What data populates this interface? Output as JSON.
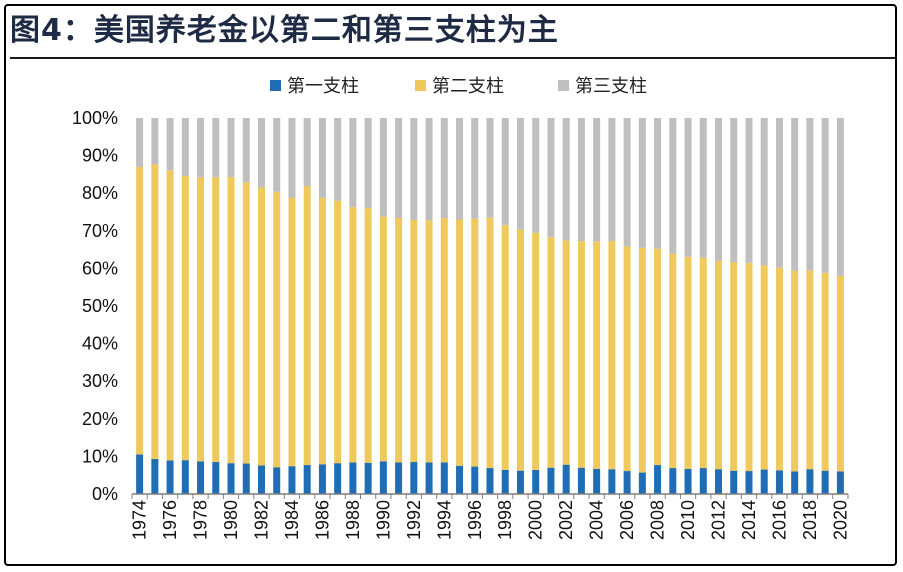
{
  "title": "图4：美国养老金以第二和第三支柱为主",
  "chart_data": {
    "type": "bar",
    "stacked": true,
    "categories": [
      "1974",
      "1975",
      "1976",
      "1977",
      "1978",
      "1979",
      "1980",
      "1981",
      "1982",
      "1983",
      "1984",
      "1985",
      "1986",
      "1987",
      "1988",
      "1989",
      "1990",
      "1991",
      "1992",
      "1993",
      "1994",
      "1995",
      "1996",
      "1997",
      "1998",
      "1999",
      "2000",
      "2001",
      "2002",
      "2003",
      "2004",
      "2005",
      "2006",
      "2007",
      "2008",
      "2009",
      "2010",
      "2011",
      "2012",
      "2013",
      "2014",
      "2015",
      "2016",
      "2017",
      "2018",
      "2019",
      "2020"
    ],
    "x_tick_labels": [
      "1974",
      "1976",
      "1978",
      "1980",
      "1982",
      "1984",
      "1986",
      "1988",
      "1990",
      "1992",
      "1994",
      "1996",
      "1998",
      "2000",
      "2002",
      "2004",
      "2006",
      "2008",
      "2010",
      "2012",
      "2014",
      "2016",
      "2018",
      "2020"
    ],
    "y_tick_labels": [
      "0%",
      "10%",
      "20%",
      "30%",
      "40%",
      "50%",
      "60%",
      "70%",
      "80%",
      "90%",
      "100%"
    ],
    "ylim": [
      0,
      100
    ],
    "legend_position": "top",
    "series": [
      {
        "name": "第一支柱",
        "color": "#1f6db5",
        "values": [
          10.5,
          9.3,
          8.9,
          9.0,
          8.7,
          8.5,
          8.2,
          8.1,
          7.6,
          7.1,
          7.4,
          7.7,
          7.9,
          8.2,
          8.4,
          8.3,
          8.7,
          8.4,
          8.5,
          8.4,
          8.4,
          7.5,
          7.3,
          6.9,
          6.4,
          6.2,
          6.4,
          7.0,
          7.8,
          7.0,
          6.7,
          6.6,
          6.1,
          5.7,
          7.7,
          6.9,
          6.7,
          6.9,
          6.6,
          6.2,
          6.1,
          6.5,
          6.3,
          6.0,
          6.6,
          6.2,
          6.0
        ]
      },
      {
        "name": "第二支柱",
        "color": "#f0c95c",
        "values": [
          76.5,
          78.4,
          77.2,
          75.6,
          75.5,
          75.7,
          76.1,
          74.8,
          73.9,
          73.3,
          71.4,
          74.2,
          70.9,
          69.8,
          67.9,
          67.7,
          65.1,
          65.0,
          64.4,
          64.4,
          65.0,
          65.5,
          65.9,
          66.6,
          65.1,
          64.1,
          63.1,
          61.3,
          59.6,
          60.2,
          60.5,
          60.7,
          59.8,
          59.8,
          57.5,
          57.0,
          56.4,
          55.9,
          55.5,
          55.5,
          55.4,
          54.3,
          53.9,
          53.4,
          52.9,
          52.6,
          52.0
        ]
      },
      {
        "name": "第三支柱",
        "color": "#bfbfbf",
        "values": [
          13.0,
          12.3,
          13.9,
          15.4,
          15.8,
          15.8,
          15.7,
          17.1,
          18.5,
          19.6,
          21.2,
          18.1,
          21.2,
          22.0,
          23.7,
          24.0,
          26.2,
          26.6,
          27.1,
          27.2,
          26.6,
          27.0,
          26.8,
          26.5,
          28.5,
          29.7,
          30.5,
          31.7,
          32.6,
          32.8,
          32.8,
          32.7,
          34.1,
          34.5,
          34.8,
          36.1,
          36.9,
          37.2,
          37.9,
          38.3,
          38.5,
          39.2,
          39.8,
          40.6,
          40.5,
          41.2,
          42.0
        ]
      }
    ]
  }
}
